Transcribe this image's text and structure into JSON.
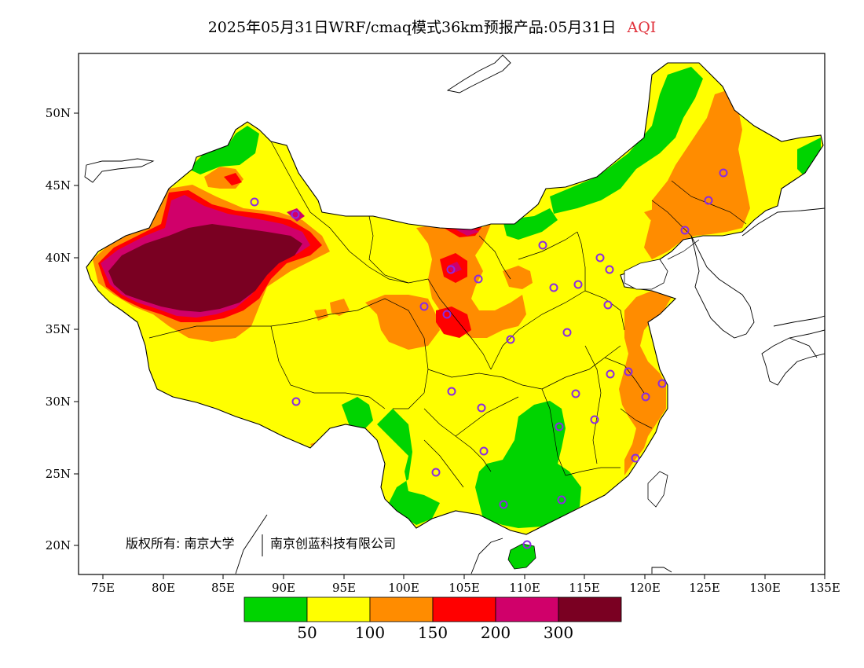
{
  "title": {
    "main": "2025年05月31日WRF/cmaq模式36km预报产品:05月31日",
    "variable": "AQI"
  },
  "axes": {
    "lat_labels": [
      "50N",
      "45N",
      "40N",
      "35N",
      "30N",
      "25N",
      "20N"
    ],
    "lon_labels": [
      "75E",
      "80E",
      "85E",
      "90E",
      "95E",
      "100E",
      "105E",
      "110E",
      "115E",
      "120E",
      "125E",
      "130E",
      "135E"
    ]
  },
  "copyright": {
    "part1": "版权所有: 南京大学",
    "part2": "南京创蓝科技有限公司"
  },
  "legend": {
    "colors": [
      "#00d400",
      "#ffff00",
      "#ff8c00",
      "#ff0000",
      "#d0006a",
      "#7a0022"
    ],
    "labels": [
      "50",
      "100",
      "150",
      "200",
      "300"
    ]
  },
  "colors": {
    "good": "#00d400",
    "moderate": "#ffff00",
    "sensitive": "#ff8c00",
    "unhealthy": "#ff0000",
    "very_unhealthy": "#d0006a",
    "hazardous": "#7a0022",
    "station_marker": "#8a2be2"
  }
}
